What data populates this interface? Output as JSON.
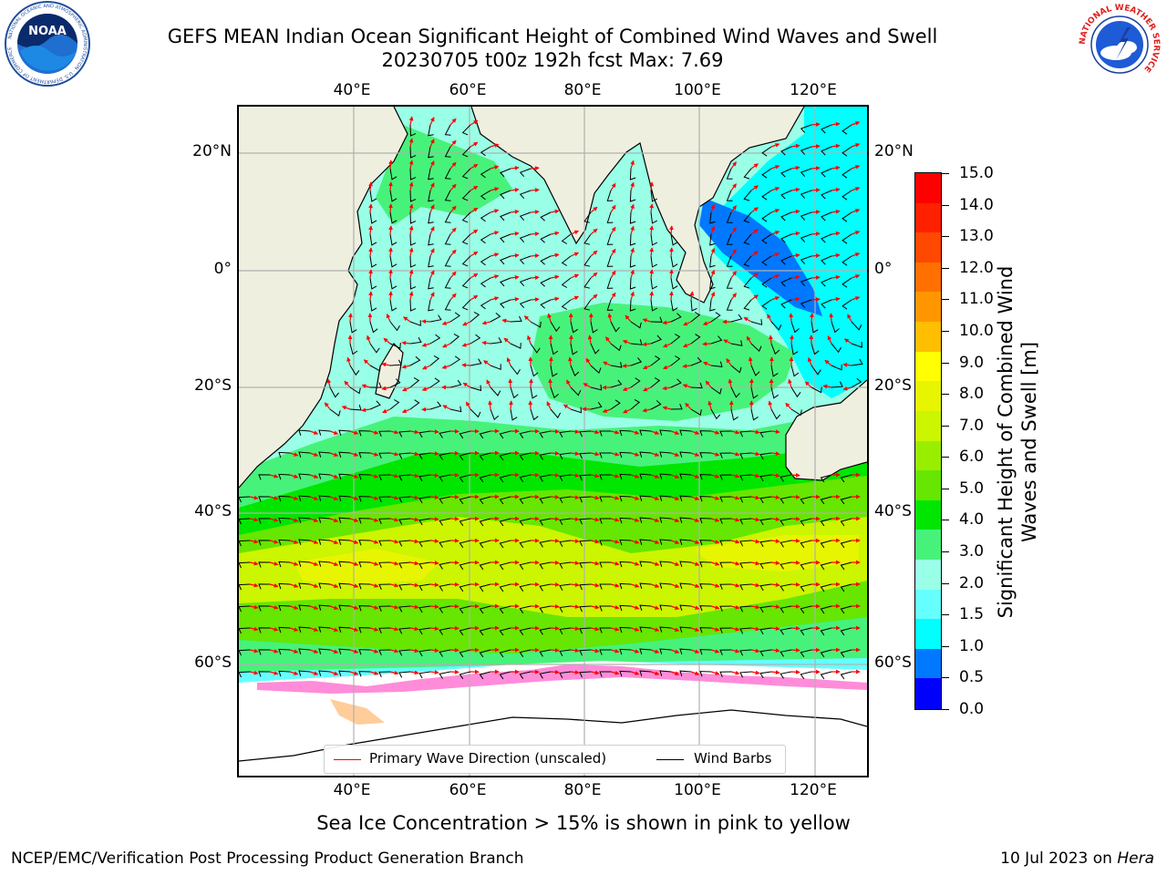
{
  "header": {
    "title_line1": "GEFS MEAN Indian Ocean Significant Height of Combined Wind Waves and Swell",
    "title_line2": "20230705 t00z 192h fcst   Max: 7.69"
  },
  "map": {
    "lon_ticks": [
      "40°E",
      "60°E",
      "80°E",
      "100°E",
      "120°E"
    ],
    "lat_ticks": [
      "20°N",
      "0°",
      "20°S",
      "40°S",
      "60°S"
    ],
    "lon_range": [
      20,
      130
    ],
    "lat_range": [
      -73,
      28
    ],
    "grid": true,
    "colors": {
      "land": "#efefdf",
      "sea_ice_area": "#ffffff",
      "wave_arrow": "#ff0000",
      "wind_barb": "#000000"
    }
  },
  "legend": {
    "wave_label": "Primary Wave Direction (unscaled)",
    "barb_label": "Wind Barbs"
  },
  "colorbar": {
    "title": "Significant Height of Combined Wind Waves and Swell [m]",
    "labels": [
      "15.0",
      "14.0",
      "13.0",
      "12.0",
      "11.0",
      "10.0",
      "9.0",
      "8.0",
      "7.0",
      "6.0",
      "5.0",
      "4.0",
      "3.0",
      "2.0",
      "1.5",
      "1.0",
      "0.5",
      "0.0"
    ],
    "colors_top_to_bottom": [
      "#ff0000",
      "#ff2000",
      "#ff4800",
      "#ff7000",
      "#ff9600",
      "#ffbe00",
      "#ffff00",
      "#e8f500",
      "#ccf500",
      "#99ee00",
      "#66e600",
      "#00e600",
      "#47f27a",
      "#99ffe6",
      "#66ffff",
      "#00ffff",
      "#0078ff",
      "#0000ff"
    ]
  },
  "logos": {
    "noaa": {
      "center_text": "NOAA",
      "ring_text": "NATIONAL OCEANIC AND ATMOSPHERIC ADMINISTRATION · U.S. DEPARTMENT OF COMMERCE"
    },
    "nws": {
      "ring_text": "NATIONAL WEATHER SERVICE"
    }
  },
  "footer": {
    "note": "Sea Ice Concentration > 15% is shown in pink to yellow",
    "credit": "NCEP/EMC/Verification Post Processing Product Generation Branch",
    "date_prefix": "10 Jul 2023 on ",
    "machine": "Hera"
  }
}
